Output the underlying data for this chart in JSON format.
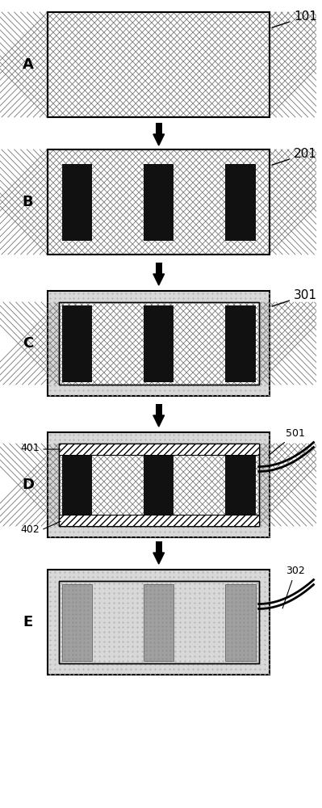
{
  "bg_color": "#ffffff",
  "label_color": "#1a1a1a",
  "steps": [
    "A",
    "B",
    "C",
    "D",
    "E"
  ],
  "annotations": [
    "101",
    "201",
    "301",
    "401",
    "402",
    "501",
    "302"
  ],
  "crosshatch_color": "#888888",
  "black_bar_color": "#111111",
  "dotted_bg_color": "#d0d0d0",
  "hatch_stripe_color": "#555555"
}
